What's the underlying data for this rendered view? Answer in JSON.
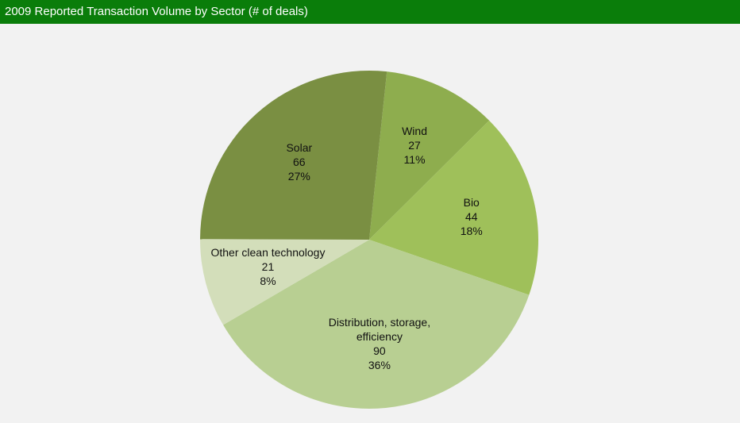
{
  "chart_data": {
    "type": "pie",
    "title": "2009 Reported Transaction Volume by Sector (# of deals)",
    "categories": [
      "Wind",
      "Bio",
      "Distribution, storage, efficiency",
      "Other clean technology",
      "Solar"
    ],
    "values": [
      27,
      44,
      90,
      21,
      66
    ],
    "percent_labels": [
      "11%",
      "18%",
      "36%",
      "8%",
      "27%"
    ],
    "colors": [
      "#8ead4e",
      "#9fc05a",
      "#b8cf92",
      "#d3deba",
      "#7a8f42"
    ]
  }
}
